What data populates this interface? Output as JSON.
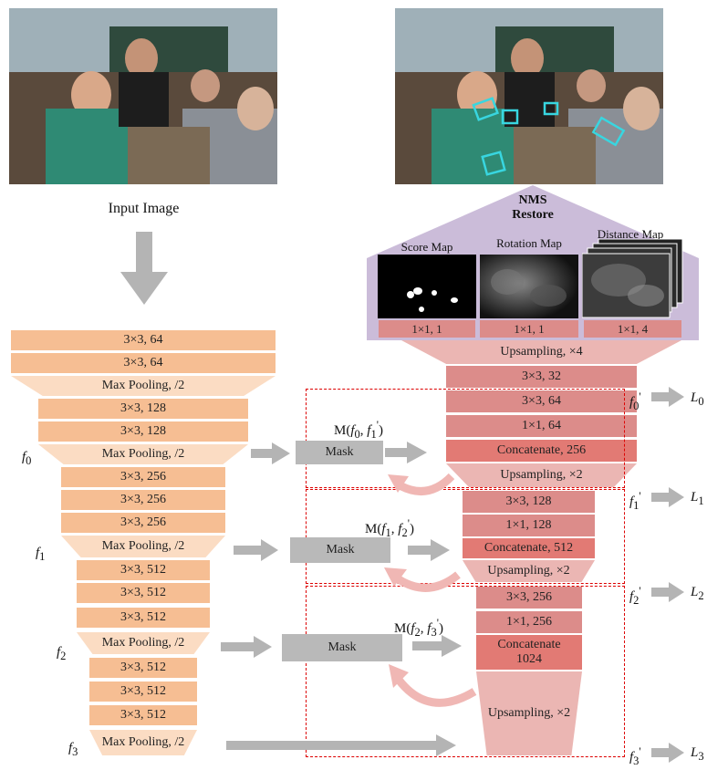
{
  "input_label": "Input Image",
  "nms": {
    "line1": "NMS",
    "line2": "Restore"
  },
  "maps": [
    {
      "title": "Score Map",
      "out": "1×1, 1"
    },
    {
      "title": "Rotation Map",
      "out": "1×1, 1"
    },
    {
      "title": "Distance Map",
      "out": "1×1, 4"
    }
  ],
  "encoder": [
    "3×3, 64",
    "3×3, 64",
    "Max Pooling, /2",
    "3×3, 128",
    "3×3, 128",
    "Max Pooling, /2",
    "3×3, 256",
    "3×3, 256",
    "3×3, 256",
    "Max Pooling, /2",
    "3×3, 512",
    "3×3, 512",
    "3×3, 512",
    "Max Pooling, /2",
    "3×3, 512",
    "3×3, 512",
    "3×3, 512",
    "Max Pooling, /2"
  ],
  "decoder": {
    "up4": "Upsampling, ×4",
    "s0": [
      "3×3, 32",
      "3×3, 64",
      "1×1, 64",
      "Concatenate, 256",
      "Upsampling, ×2"
    ],
    "s1": [
      "3×3, 128",
      "1×1, 128",
      "Concatenate, 512",
      "Upsampling, ×2"
    ],
    "s2": [
      "3×3, 256",
      "1×1, 256",
      "Concatenate\n1024",
      "Upsampling, ×2"
    ]
  },
  "mask_label": "Mask",
  "f_labels": [
    "f0",
    "f1",
    "f2",
    "f3"
  ],
  "m_labels": [
    "M(f0, f1')",
    "M(f1, f2')",
    "M(f2, f3')"
  ],
  "fp_labels": [
    "f0'",
    "f1'",
    "f2'",
    "f3'"
  ],
  "loss_labels": [
    "L0",
    "L1",
    "L2",
    "L3"
  ]
}
